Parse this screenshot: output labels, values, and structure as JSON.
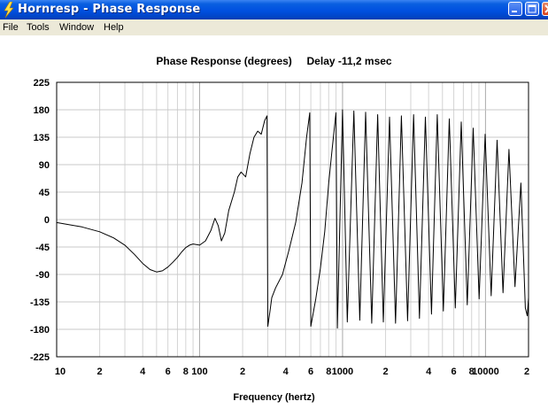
{
  "window": {
    "title": "Hornresp - Phase Response",
    "icon": "lightning-bolt-icon",
    "titlebar_color": "#0054e3"
  },
  "menu": [
    "File",
    "Tools",
    "Window",
    "Help"
  ],
  "chart_data": {
    "type": "line",
    "title": "Phase Response (degrees)",
    "annotation": "Delay -11,2 msec",
    "xlabel": "Frequency (hertz)",
    "x_scale": "log",
    "xlim": [
      10,
      20000
    ],
    "ylim": [
      -225,
      225
    ],
    "grid": true,
    "y_ticks": [
      "225",
      "180",
      "135",
      "90",
      "45",
      "0",
      "-45",
      "-90",
      "-135",
      "-180",
      "-225"
    ],
    "y_tick_values": [
      225,
      180,
      135,
      90,
      45,
      0,
      -45,
      -90,
      -135,
      -180,
      -225
    ],
    "x_ticks": [
      "10",
      "2",
      "4",
      "6",
      "8",
      "100",
      "2",
      "4",
      "6",
      "8",
      "1000",
      "2",
      "4",
      "6",
      "8",
      "10000",
      "2"
    ],
    "x_tick_values": [
      10,
      20,
      40,
      60,
      80,
      100,
      200,
      400,
      600,
      800,
      1000,
      2000,
      4000,
      6000,
      8000,
      10000,
      20000
    ],
    "series": [
      {
        "color": "#000000",
        "points": [
          [
            10,
            -5
          ],
          [
            15,
            -12
          ],
          [
            20,
            -20
          ],
          [
            25,
            -30
          ],
          [
            30,
            -42
          ],
          [
            35,
            -57
          ],
          [
            40,
            -72
          ],
          [
            45,
            -82
          ],
          [
            50,
            -86
          ],
          [
            55,
            -84
          ],
          [
            60,
            -78
          ],
          [
            65,
            -70
          ],
          [
            70,
            -62
          ],
          [
            75,
            -53
          ],
          [
            80,
            -46
          ],
          [
            85,
            -42
          ],
          [
            90,
            -40
          ],
          [
            100,
            -42
          ],
          [
            110,
            -35
          ],
          [
            120,
            -18
          ],
          [
            128,
            2
          ],
          [
            135,
            -10
          ],
          [
            142,
            -35
          ],
          [
            150,
            -22
          ],
          [
            160,
            15
          ],
          [
            175,
            45
          ],
          [
            185,
            70
          ],
          [
            195,
            78
          ],
          [
            210,
            70
          ],
          [
            225,
            108
          ],
          [
            240,
            135
          ],
          [
            255,
            145
          ],
          [
            270,
            140
          ],
          [
            285,
            162
          ],
          [
            296,
            170
          ],
          [
            300,
            -175
          ],
          [
            310,
            -152
          ],
          [
            320,
            -128
          ],
          [
            340,
            -112
          ],
          [
            380,
            -90
          ],
          [
            420,
            -52
          ],
          [
            470,
            -5
          ],
          [
            520,
            60
          ],
          [
            560,
            135
          ],
          [
            590,
            175
          ],
          [
            600,
            -175
          ],
          [
            650,
            -130
          ],
          [
            700,
            -80
          ],
          [
            750,
            -20
          ],
          [
            800,
            60
          ],
          [
            850,
            120
          ],
          [
            900,
            175
          ],
          [
            920,
            -178
          ],
          [
            1000,
            180
          ],
          [
            1080,
            -168
          ],
          [
            1200,
            178
          ],
          [
            1320,
            -165
          ],
          [
            1450,
            176
          ],
          [
            1600,
            -170
          ],
          [
            1760,
            172
          ],
          [
            1930,
            -168
          ],
          [
            2130,
            168
          ],
          [
            2350,
            -170
          ],
          [
            2580,
            170
          ],
          [
            2850,
            -166
          ],
          [
            3140,
            172
          ],
          [
            3450,
            -162
          ],
          [
            3800,
            168
          ],
          [
            4190,
            -155
          ],
          [
            4600,
            172
          ],
          [
            5070,
            -150
          ],
          [
            5580,
            165
          ],
          [
            6150,
            -145
          ],
          [
            6770,
            160
          ],
          [
            7450,
            -140
          ],
          [
            8200,
            150
          ],
          [
            9030,
            -130
          ],
          [
            9940,
            140
          ],
          [
            10950,
            -125
          ],
          [
            12050,
            130
          ],
          [
            13260,
            -120
          ],
          [
            14600,
            115
          ],
          [
            16080,
            -110
          ],
          [
            17700,
            60
          ],
          [
            19000,
            -145
          ],
          [
            19600,
            -158
          ],
          [
            20000,
            -128
          ]
        ]
      }
    ]
  }
}
